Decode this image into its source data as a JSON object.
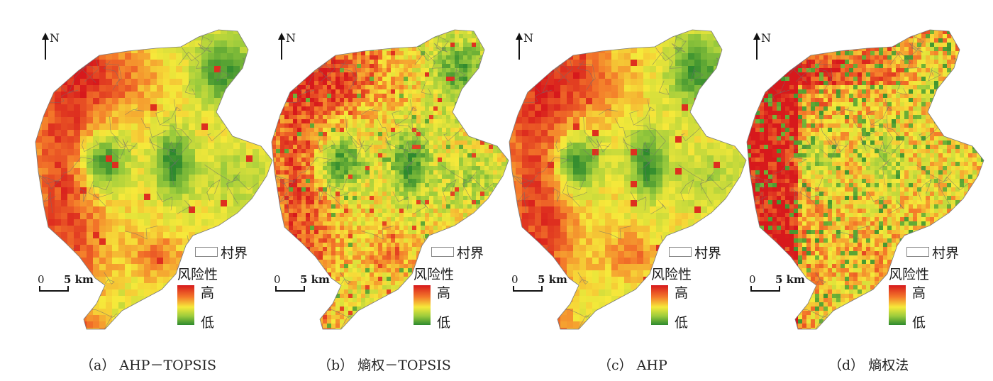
{
  "panels": [
    {
      "caption": "（a） AHP－TOPSIS",
      "north_label": "N",
      "scale_zero": "0",
      "scale_label": "5 km",
      "legend_boundary": "村界",
      "legend_title": "风险性",
      "legend_high": "高",
      "legend_low": "低",
      "pattern": "smooth"
    },
    {
      "caption": "（b） 熵权－TOPSIS",
      "north_label": "N",
      "scale_zero": "0",
      "scale_label": "5 km",
      "legend_boundary": "村界",
      "legend_title": "风险性",
      "legend_high": "高",
      "legend_low": "低",
      "pattern": "mixed"
    },
    {
      "caption": "（c） AHP",
      "north_label": "N",
      "scale_zero": "0",
      "scale_label": "5 km",
      "legend_boundary": "村界",
      "legend_title": "风险性",
      "legend_high": "高",
      "legend_low": "低",
      "pattern": "smooth"
    },
    {
      "caption": "（d） 熵权法",
      "north_label": "N",
      "scale_zero": "0",
      "scale_label": "5 km",
      "legend_boundary": "村界",
      "legend_title": "风险性",
      "legend_high": "高",
      "legend_low": "低",
      "pattern": "noisy"
    }
  ],
  "colors": {
    "high": "#d7191c",
    "mid_high": "#f47a2a",
    "mid": "#f6e93a",
    "mid_low": "#9acb3c",
    "low": "#2e8a2e",
    "boundary": "#6e6e6e"
  }
}
